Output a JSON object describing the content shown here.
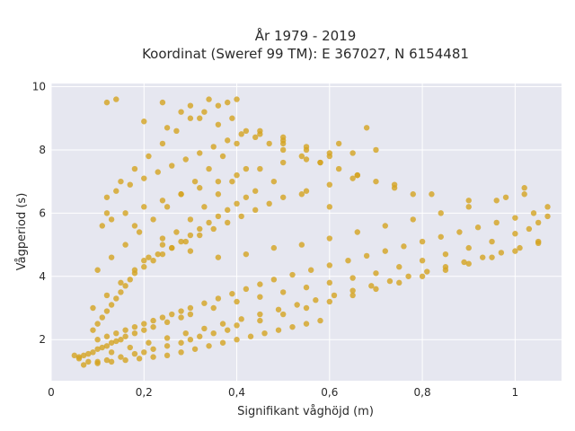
{
  "chart_data": {
    "type": "scatter",
    "title": "År 1979 - 2019",
    "subtitle": "Koordinat (Sweref 99 TM): E 367027, N 6154481",
    "xlabel": "Signifikant våghöjd (m)",
    "ylabel": "Vågperiod (s)",
    "xlim": [
      0,
      1.1
    ],
    "ylim": [
      0.7,
      10.1
    ],
    "x_ticks": [
      0,
      0.2,
      0.4,
      0.6,
      0.8,
      1
    ],
    "x_tick_labels": [
      "0",
      "0,2",
      "0,4",
      "0,6",
      "0,8",
      "1"
    ],
    "y_ticks": [
      2,
      4,
      6,
      8,
      10
    ],
    "y_tick_labels": [
      "2",
      "4",
      "6",
      "8",
      "10"
    ],
    "grid": true,
    "legend": "none",
    "colors": {
      "marker": "#D4A420",
      "plot_bg": "#E6E7F0",
      "grid": "#FFFFFF"
    },
    "series": [
      {
        "x": [
          0.06,
          0.07,
          0.08,
          0.09,
          0.1,
          0.11,
          0.12,
          0.13,
          0.14,
          0.15,
          0.16,
          0.18,
          0.2,
          0.22,
          0.25,
          0.28,
          0.3,
          0.35,
          0.4,
          0.45,
          0.5,
          0.55,
          0.6,
          0.65,
          0.7,
          0.75,
          0.8,
          0.85,
          0.9,
          0.95,
          1.0,
          1.03,
          1.05,
          1.07,
          0.1,
          0.12,
          0.15,
          0.18,
          0.2,
          0.22,
          0.25,
          0.28,
          0.3,
          0.32,
          0.35,
          0.38,
          0.4,
          0.45,
          0.5,
          0.55,
          0.6,
          0.65,
          0.7,
          0.75,
          0.8,
          0.85,
          0.9,
          0.95,
          1.0,
          1.05,
          0.09,
          0.1,
          0.11,
          0.12,
          0.13,
          0.14,
          0.15,
          0.16,
          0.17,
          0.18,
          0.2,
          0.22,
          0.24,
          0.26,
          0.28,
          0.3,
          0.32,
          0.34,
          0.36,
          0.38,
          0.4,
          0.42,
          0.44,
          0.11,
          0.13,
          0.16,
          0.2,
          0.24,
          0.28,
          0.32,
          0.36,
          0.4,
          0.45,
          0.5,
          0.55,
          0.6,
          0.65,
          0.7,
          0.12,
          0.14,
          0.17,
          0.2,
          0.23,
          0.26,
          0.29,
          0.32,
          0.35,
          0.38,
          0.41,
          0.44,
          0.47,
          0.5,
          0.54,
          0.58,
          0.62,
          0.66,
          0.7,
          0.74,
          0.78,
          0.1,
          0.13,
          0.16,
          0.19,
          0.22,
          0.25,
          0.28,
          0.31,
          0.34,
          0.37,
          0.4,
          0.45,
          0.5,
          0.55,
          0.6,
          0.15,
          0.18,
          0.21,
          0.24,
          0.27,
          0.3,
          0.33,
          0.36,
          0.39,
          0.42,
          0.5,
          0.58,
          0.66,
          0.74,
          0.82,
          0.9,
          0.98,
          1.02,
          0.09,
          0.12,
          0.15,
          0.18,
          0.21,
          0.24,
          0.27,
          0.3,
          0.33,
          0.36,
          0.39,
          0.42,
          0.48,
          0.54,
          0.6,
          0.07,
          0.1,
          0.13,
          0.16,
          0.19,
          0.22,
          0.25,
          0.28,
          0.31,
          0.34,
          0.37,
          0.4,
          0.43,
          0.46,
          0.49,
          0.52,
          0.55,
          0.58,
          0.2,
          0.23,
          0.26,
          0.29,
          0.32,
          0.35,
          0.38,
          0.41,
          0.44,
          0.47,
          0.5,
          0.55,
          0.6,
          0.65,
          0.1,
          0.12,
          0.14,
          0.16,
          0.18,
          0.2,
          0.22,
          0.24,
          0.26,
          0.28,
          0.3,
          0.33,
          0.36,
          0.39,
          0.42,
          0.45,
          0.48,
          0.52,
          0.56,
          0.6,
          0.64,
          0.68,
          0.72,
          0.76,
          0.8,
          0.84,
          0.88,
          0.92,
          0.96,
          1.0,
          1.04,
          1.07,
          0.13,
          0.17,
          0.21,
          0.25,
          0.29,
          0.33,
          0.37,
          0.41,
          0.45,
          0.49,
          0.53,
          0.57,
          0.61,
          0.65,
          0.69,
          0.73,
          0.77,
          0.81,
          0.85,
          0.89,
          0.93,
          0.97,
          1.01,
          1.05,
          0.12,
          0.18,
          0.24,
          0.3,
          0.36,
          0.42,
          0.48,
          0.54,
          0.6,
          0.66,
          0.72,
          0.78,
          0.84,
          0.9,
          0.96,
          1.02,
          0.24,
          0.28,
          0.32,
          0.36,
          0.3,
          0.34,
          0.2,
          0.25,
          0.45,
          0.5,
          0.14,
          0.12,
          0.38,
          0.4,
          0.55,
          0.62,
          0.68,
          0.05,
          0.06,
          0.08
        ],
        "y": [
          1.45,
          1.5,
          1.55,
          1.6,
          1.7,
          1.75,
          1.8,
          1.9,
          1.95,
          2.0,
          2.1,
          2.2,
          2.3,
          2.4,
          2.55,
          2.7,
          2.8,
          3.0,
          3.2,
          3.35,
          3.5,
          3.65,
          3.8,
          3.95,
          4.1,
          4.3,
          4.5,
          4.7,
          4.9,
          5.1,
          5.35,
          5.5,
          5.7,
          5.9,
          1.3,
          1.35,
          1.45,
          1.55,
          1.6,
          1.7,
          1.8,
          1.9,
          2.0,
          2.1,
          2.2,
          2.3,
          2.45,
          2.6,
          2.8,
          3.0,
          3.2,
          3.4,
          3.6,
          3.8,
          4.0,
          4.2,
          4.4,
          4.6,
          4.8,
          5.1,
          2.3,
          2.5,
          2.7,
          2.9,
          3.1,
          3.3,
          3.5,
          3.7,
          3.9,
          4.1,
          4.3,
          4.5,
          4.7,
          4.9,
          5.1,
          5.3,
          5.5,
          5.7,
          5.9,
          6.1,
          6.3,
          6.5,
          6.7,
          5.6,
          5.8,
          6.0,
          6.2,
          6.4,
          6.6,
          6.8,
          7.0,
          7.2,
          7.4,
          7.6,
          7.7,
          7.8,
          7.9,
          8.0,
          6.5,
          6.7,
          6.9,
          7.1,
          7.3,
          7.5,
          7.7,
          7.9,
          8.1,
          8.3,
          8.5,
          8.4,
          8.2,
          8.0,
          7.8,
          7.6,
          7.4,
          7.2,
          7.0,
          6.8,
          6.6,
          4.2,
          4.6,
          5.0,
          5.4,
          5.8,
          6.2,
          6.6,
          7.0,
          7.4,
          7.8,
          8.2,
          8.6,
          8.4,
          8.1,
          7.9,
          7.0,
          7.4,
          7.8,
          8.2,
          8.6,
          9.0,
          9.2,
          9.4,
          9.0,
          8.6,
          8.2,
          7.6,
          7.2,
          6.9,
          6.6,
          6.4,
          6.5,
          6.8,
          3.0,
          3.4,
          3.8,
          4.2,
          4.6,
          5.0,
          5.4,
          5.8,
          6.2,
          6.6,
          7.0,
          7.4,
          7.0,
          6.6,
          6.2,
          1.2,
          1.25,
          1.3,
          1.35,
          1.4,
          1.45,
          1.5,
          1.6,
          1.7,
          1.8,
          1.9,
          2.0,
          2.1,
          2.2,
          2.3,
          2.4,
          2.5,
          2.6,
          4.5,
          4.7,
          4.9,
          5.1,
          5.3,
          5.5,
          5.7,
          5.9,
          6.1,
          6.3,
          6.5,
          6.7,
          6.9,
          7.1,
          2.0,
          2.1,
          2.2,
          2.3,
          2.4,
          2.5,
          2.6,
          2.7,
          2.8,
          2.9,
          3.0,
          3.15,
          3.3,
          3.45,
          3.6,
          3.75,
          3.9,
          4.05,
          4.2,
          4.35,
          4.5,
          4.65,
          4.8,
          4.95,
          5.1,
          5.25,
          5.4,
          5.55,
          5.7,
          5.85,
          6.0,
          6.2,
          1.6,
          1.75,
          1.9,
          2.05,
          2.2,
          2.35,
          2.5,
          2.65,
          2.8,
          2.95,
          3.1,
          3.25,
          3.4,
          3.55,
          3.7,
          3.85,
          4.0,
          4.15,
          4.3,
          4.45,
          4.6,
          4.75,
          4.9,
          5.05,
          6.0,
          5.6,
          5.2,
          4.8,
          4.6,
          4.7,
          4.9,
          5.0,
          5.2,
          5.4,
          5.6,
          5.8,
          6.0,
          6.2,
          6.4,
          6.6,
          9.5,
          9.2,
          9.0,
          8.8,
          9.4,
          9.6,
          8.9,
          8.7,
          8.5,
          8.3,
          9.6,
          9.5,
          9.5,
          9.6,
          8.0,
          8.2,
          8.7,
          1.5,
          1.4,
          1.3
        ]
      }
    ]
  }
}
